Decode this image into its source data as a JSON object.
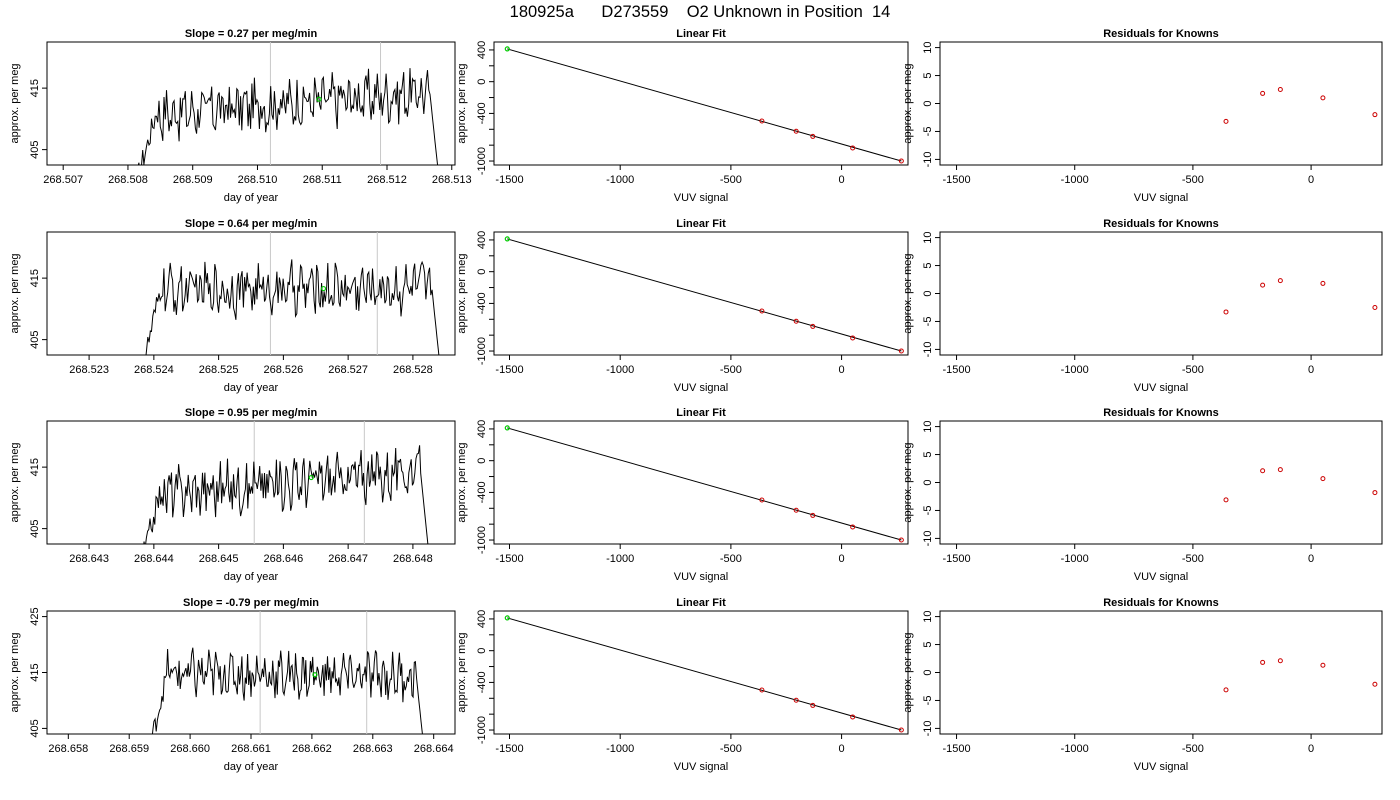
{
  "figure": {
    "title": "180925a      D273559    O2 Unknown in Position  14"
  },
  "colors": {
    "trace": "#000000",
    "marker_green": "#00cc00",
    "known_red": "#cc0000",
    "window_line": "#c8c8c8"
  },
  "chart_data": [
    {
      "type": "line",
      "title": "Slope =  0.27  per meg/min",
      "xlabel": "day of year",
      "ylabel": "approx. per meg",
      "xlim": [
        268.50675,
        268.51305
      ],
      "ylim": [
        402.5,
        422.5
      ],
      "xticks": [
        "268.507",
        "268.508",
        "268.509",
        "268.510",
        "268.511",
        "268.512",
        "268.513"
      ],
      "xtick_values": [
        268.507,
        268.508,
        268.509,
        268.51,
        268.511,
        268.512,
        268.513
      ],
      "yticks": [
        "405",
        "415"
      ],
      "ytick_values": [
        405,
        415
      ],
      "window_lines": [
        268.5102,
        268.5119
      ],
      "trace_start": 268.50815,
      "trace_end": 268.5128,
      "trace_mean_start": 410.5,
      "trace_mean_end": 414.5,
      "marker": {
        "x": 268.51095,
        "y": 413.2
      }
    },
    {
      "type": "line",
      "title": "Slope =  0.64  per meg/min",
      "xlabel": "day of year",
      "ylabel": "approx. per meg",
      "xlim": [
        268.52235,
        268.52865
      ],
      "ylim": [
        402.5,
        422.5
      ],
      "xticks": [
        "268.523",
        "268.524",
        "268.525",
        "268.526",
        "268.527",
        "268.528"
      ],
      "xtick_values": [
        268.523,
        268.524,
        268.525,
        268.526,
        268.527,
        268.528
      ],
      "yticks": [
        "405",
        "415"
      ],
      "ytick_values": [
        405,
        415
      ],
      "window_lines": [
        268.5258,
        268.52745
      ],
      "trace_start": 268.52383,
      "trace_end": 268.52843,
      "trace_mean_start": 413.0,
      "trace_mean_end": 413.5,
      "marker": {
        "x": 268.52662,
        "y": 413.3
      }
    },
    {
      "type": "line",
      "title": "Slope =  0.95  per meg/min",
      "xlabel": "day of year",
      "ylabel": "approx. per meg",
      "xlim": [
        268.64235,
        268.64865
      ],
      "ylim": [
        402.5,
        422.5
      ],
      "xticks": [
        "268.643",
        "268.644",
        "268.645",
        "268.646",
        "268.647",
        "268.648"
      ],
      "xtick_values": [
        268.643,
        268.644,
        268.645,
        268.646,
        268.647,
        268.648
      ],
      "yticks": [
        "405",
        "415"
      ],
      "ytick_values": [
        405,
        415
      ],
      "window_lines": [
        268.64555,
        268.64725
      ],
      "trace_start": 268.64383,
      "trace_end": 268.64825,
      "trace_mean_start": 410.5,
      "trace_mean_end": 414.5,
      "marker": {
        "x": 268.64643,
        "y": 413.3
      }
    },
    {
      "type": "line",
      "title": "Slope =  -0.79  per meg/min",
      "xlabel": "day of year",
      "ylabel": "approx. per meg",
      "xlim": [
        268.65765,
        268.66435
      ],
      "ylim": [
        404,
        426
      ],
      "xticks": [
        "268.658",
        "268.659",
        "268.660",
        "268.661",
        "268.662",
        "268.663",
        "268.664"
      ],
      "xtick_values": [
        268.658,
        268.659,
        268.66,
        268.661,
        268.662,
        268.663,
        268.664
      ],
      "yticks": [
        "405",
        "415",
        "425"
      ],
      "ytick_values": [
        405,
        415,
        425
      ],
      "window_lines": [
        268.66115,
        268.6629
      ],
      "trace_start": 268.65935,
      "trace_end": 268.66385,
      "trace_mean_start": 414.8,
      "trace_mean_end": 414.3,
      "marker": {
        "x": 268.66205,
        "y": 414.6
      }
    },
    {
      "type": "scatter",
      "title": "Linear Fit",
      "xlabel": "VUV signal",
      "ylabel": "approx. per meg",
      "xlim": [
        -1570,
        300
      ],
      "ylim": [
        -1050,
        500
      ],
      "xticks": [
        "-1500",
        "-1000",
        "-500",
        "0"
      ],
      "xtick_values": [
        -1500,
        -1000,
        -500,
        0
      ],
      "yticks": [
        "-1000",
        "-800",
        "-600",
        "-400",
        "-200",
        "0",
        "200",
        "400"
      ],
      "ytick_values": [
        -1000,
        -800,
        -600,
        -400,
        -200,
        0,
        200,
        400
      ],
      "yticks_labeled": [
        "-1000",
        "-400",
        "0",
        "400"
      ],
      "fit_line": {
        "x": [
          -1510,
          270
        ],
        "y": [
          413,
          -1000
        ]
      },
      "knowns": {
        "x": [
          -360,
          -205,
          -130,
          50,
          270
        ],
        "y": [
          -495,
          -625,
          -690,
          -835,
          -1000
        ]
      },
      "unknown": {
        "x": -1510,
        "y": 413
      }
    },
    {
      "type": "scatter",
      "title": "Linear Fit",
      "xlabel": "VUV signal",
      "ylabel": "approx. per meg",
      "xlim": [
        -1570,
        300
      ],
      "ylim": [
        -1050,
        500
      ],
      "xticks": [
        "-1500",
        "-1000",
        "-500",
        "0"
      ],
      "xtick_values": [
        -1500,
        -1000,
        -500,
        0
      ],
      "yticks": [
        "-1000",
        "-800",
        "-600",
        "-400",
        "-200",
        "0",
        "200",
        "400"
      ],
      "ytick_values": [
        -1000,
        -800,
        -600,
        -400,
        -200,
        0,
        200,
        400
      ],
      "yticks_labeled": [
        "-1000",
        "-400",
        "0",
        "400"
      ],
      "fit_line": {
        "x": [
          -1510,
          270
        ],
        "y": [
          413,
          -1000
        ]
      },
      "knowns": {
        "x": [
          -360,
          -205,
          -130,
          50,
          270
        ],
        "y": [
          -495,
          -625,
          -690,
          -835,
          -1000
        ]
      },
      "unknown": {
        "x": -1510,
        "y": 413
      }
    },
    {
      "type": "scatter",
      "title": "Linear Fit",
      "xlabel": "VUV signal",
      "ylabel": "approx. per meg",
      "xlim": [
        -1570,
        300
      ],
      "ylim": [
        -1050,
        500
      ],
      "xticks": [
        "-1500",
        "-1000",
        "-500",
        "0"
      ],
      "xtick_values": [
        -1500,
        -1000,
        -500,
        0
      ],
      "yticks": [
        "-1000",
        "-800",
        "-600",
        "-400",
        "-200",
        "0",
        "200",
        "400"
      ],
      "ytick_values": [
        -1000,
        -800,
        -600,
        -400,
        -200,
        0,
        200,
        400
      ],
      "yticks_labeled": [
        "-1000",
        "-400",
        "0",
        "400"
      ],
      "fit_line": {
        "x": [
          -1510,
          270
        ],
        "y": [
          413,
          -1000
        ]
      },
      "knowns": {
        "x": [
          -360,
          -205,
          -130,
          50,
          270
        ],
        "y": [
          -495,
          -625,
          -690,
          -835,
          -1000
        ]
      },
      "unknown": {
        "x": -1510,
        "y": 413
      }
    },
    {
      "type": "scatter",
      "title": "Linear Fit",
      "xlabel": "VUV signal",
      "ylabel": "approx. per meg",
      "xlim": [
        -1570,
        300
      ],
      "ylim": [
        -1050,
        500
      ],
      "xticks": [
        "-1500",
        "-1000",
        "-500",
        "0"
      ],
      "xtick_values": [
        -1500,
        -1000,
        -500,
        0
      ],
      "yticks": [
        "-1000",
        "-800",
        "-600",
        "-400",
        "-200",
        "0",
        "200",
        "400"
      ],
      "ytick_values": [
        -1000,
        -800,
        -600,
        -400,
        -200,
        0,
        200,
        400
      ],
      "yticks_labeled": [
        "-1000",
        "-400",
        "0",
        "400"
      ],
      "fit_line": {
        "x": [
          -1510,
          270
        ],
        "y": [
          413,
          -1000
        ]
      },
      "knowns": {
        "x": [
          -360,
          -205,
          -130,
          50,
          270
        ],
        "y": [
          -495,
          -625,
          -690,
          -835,
          -1000
        ]
      },
      "unknown": {
        "x": -1510,
        "y": 413
      }
    },
    {
      "type": "scatter",
      "title": "Residuals for Knowns",
      "xlabel": "VUV signal",
      "ylabel": "approx. per meg",
      "xlim": [
        -1570,
        300
      ],
      "ylim": [
        -11,
        11
      ],
      "xticks": [
        "-1500",
        "-1000",
        "-500",
        "0"
      ],
      "xtick_values": [
        -1500,
        -1000,
        -500,
        0
      ],
      "yticks": [
        "-10",
        "-5",
        "0",
        "5",
        "10"
      ],
      "ytick_values": [
        -10,
        -5,
        0,
        5,
        10
      ],
      "knowns": {
        "x": [
          -360,
          -205,
          -130,
          50,
          270
        ],
        "y": [
          -3.2,
          1.8,
          2.5,
          1.0,
          -2.0
        ]
      }
    },
    {
      "type": "scatter",
      "title": "Residuals for Knowns",
      "xlabel": "VUV signal",
      "ylabel": "approx. per meg",
      "xlim": [
        -1570,
        300
      ],
      "ylim": [
        -11,
        11
      ],
      "xticks": [
        "-1500",
        "-1000",
        "-500",
        "0"
      ],
      "xtick_values": [
        -1500,
        -1000,
        -500,
        0
      ],
      "yticks": [
        "-10",
        "-5",
        "0",
        "5",
        "10"
      ],
      "ytick_values": [
        -10,
        -5,
        0,
        5,
        10
      ],
      "knowns": {
        "x": [
          -360,
          -205,
          -130,
          50,
          270
        ],
        "y": [
          -3.3,
          1.5,
          2.3,
          1.8,
          -2.5
        ]
      }
    },
    {
      "type": "scatter",
      "title": "Residuals for Knowns",
      "xlabel": "VUV signal",
      "ylabel": "approx. per meg",
      "xlim": [
        -1570,
        300
      ],
      "ylim": [
        -11,
        11
      ],
      "xticks": [
        "-1500",
        "-1000",
        "-500",
        "0"
      ],
      "xtick_values": [
        -1500,
        -1000,
        -500,
        0
      ],
      "yticks": [
        "-10",
        "-5",
        "0",
        "5",
        "10"
      ],
      "ytick_values": [
        -10,
        -5,
        0,
        5,
        10
      ],
      "knowns": {
        "x": [
          -360,
          -205,
          -130,
          50,
          270
        ],
        "y": [
          -3.1,
          2.1,
          2.3,
          0.7,
          -1.8
        ]
      }
    },
    {
      "type": "scatter",
      "title": "Residuals for Knowns",
      "xlabel": "VUV signal",
      "ylabel": "approx. per meg",
      "xlim": [
        -1570,
        300
      ],
      "ylim": [
        -11,
        11
      ],
      "xticks": [
        "-1500",
        "-1000",
        "-500",
        "0"
      ],
      "xtick_values": [
        -1500,
        -1000,
        -500,
        0
      ],
      "yticks": [
        "-10",
        "-5",
        "0",
        "5",
        "10"
      ],
      "ytick_values": [
        -10,
        -5,
        0,
        5,
        10
      ],
      "knowns": {
        "x": [
          -360,
          -205,
          -130,
          50,
          270
        ],
        "y": [
          -3.1,
          1.8,
          2.1,
          1.3,
          -2.1
        ]
      }
    }
  ]
}
